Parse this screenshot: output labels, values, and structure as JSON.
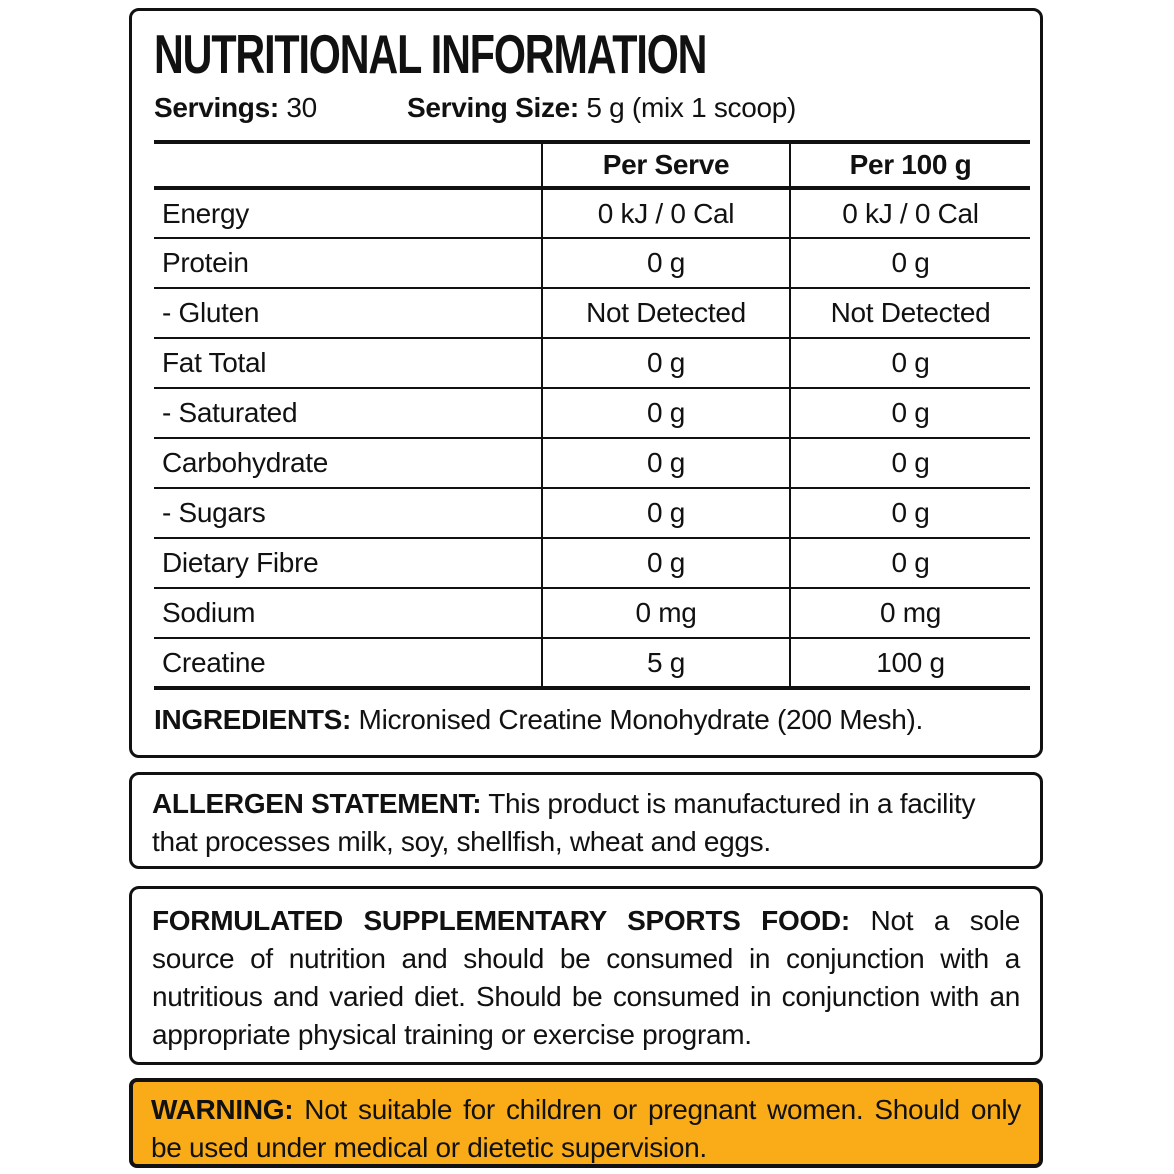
{
  "title": "NUTRITIONAL INFORMATION",
  "servings": {
    "label": "Servings:",
    "value": " 30"
  },
  "serving_size": {
    "label": "Serving Size:",
    "value": " 5 g (mix 1 scoop)"
  },
  "table": {
    "headers": {
      "nutrient": "",
      "per_serve": "Per Serve",
      "per_100g": "Per 100 g"
    },
    "rows": [
      {
        "label": "Energy",
        "per_serve": "0 kJ / 0 Cal",
        "per_100g": "0 kJ / 0 Cal"
      },
      {
        "label": "Protein",
        "per_serve": "0 g",
        "per_100g": "0 g"
      },
      {
        "label": "- Gluten",
        "per_serve": "Not Detected",
        "per_100g": "Not Detected"
      },
      {
        "label": "Fat Total",
        "per_serve": "0 g",
        "per_100g": "0 g"
      },
      {
        "label": "- Saturated",
        "per_serve": "0 g",
        "per_100g": "0 g"
      },
      {
        "label": "Carbohydrate",
        "per_serve": "0 g",
        "per_100g": "0 g"
      },
      {
        "label": "- Sugars",
        "per_serve": "0 g",
        "per_100g": "0 g"
      },
      {
        "label": "Dietary Fibre",
        "per_serve": "0 g",
        "per_100g": "0 g"
      },
      {
        "label": "Sodium",
        "per_serve": "0 mg",
        "per_100g": "0 mg"
      },
      {
        "label": "Creatine",
        "per_serve": "5 g",
        "per_100g": "100 g"
      }
    ]
  },
  "ingredients": {
    "label": "INGREDIENTS:",
    "text": " Micronised Creatine Monohydrate (200 Mesh)."
  },
  "allergen": {
    "label": "ALLERGEN STATEMENT:",
    "text": " This product is manufactured in a facility that processes milk, soy, shellfish, wheat and eggs."
  },
  "formulated": {
    "label": "FORMULATED SUPPLEMENTARY SPORTS FOOD:",
    "text": " Not a sole source of nutrition and should be consumed in conjunction with a nutritious and varied diet. Should be consumed in conjunction with an appropriate physical training or exercise program."
  },
  "warning": {
    "label": "WARNING:",
    "text": " Not suitable for children or pregnant women. Should only be used under medical or dietetic supervision."
  },
  "colors": {
    "warning_background": "#F9AC18",
    "border": "#111111",
    "text": "#111111",
    "background": "#FFFFFF"
  }
}
